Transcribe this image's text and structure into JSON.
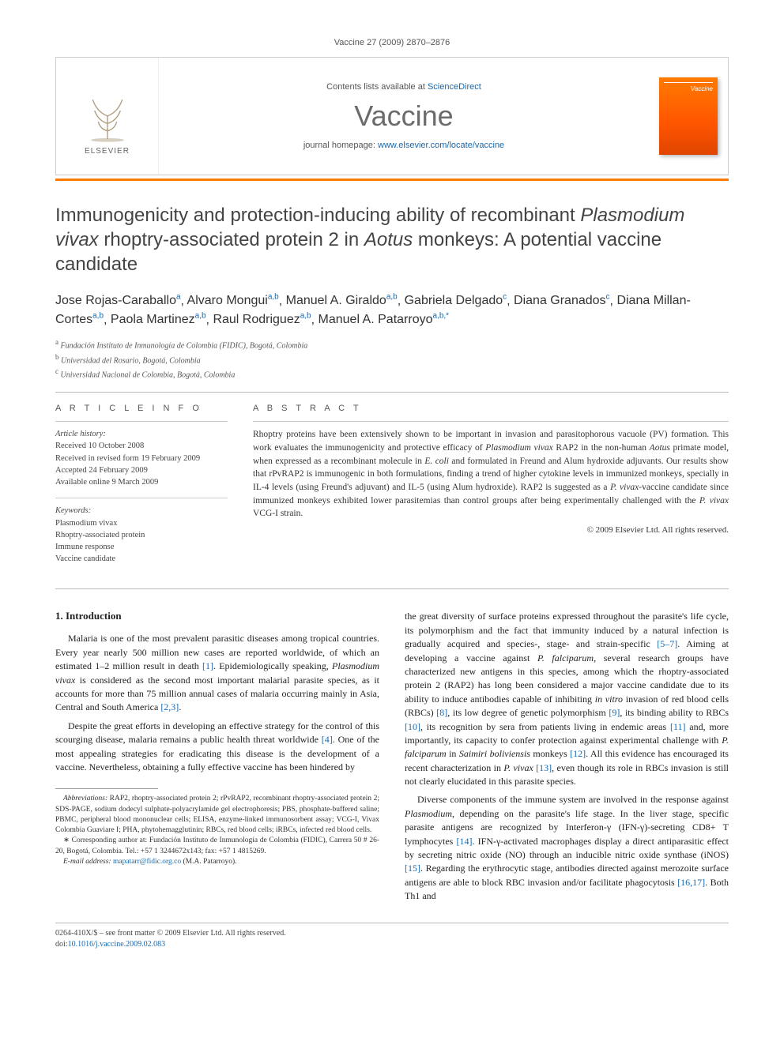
{
  "running_head": "Vaccine 27 (2009) 2870–2876",
  "masthead": {
    "contents_prefix": "Contents lists available at ",
    "contents_link": "ScienceDirect",
    "journal": "Vaccine",
    "homepage_prefix": "journal homepage: ",
    "homepage_url": "www.elsevier.com/locate/vaccine",
    "publisher": "ELSEVIER",
    "cover_label": "Vaccine"
  },
  "title_parts": {
    "p1": "Immunogenicity and protection-inducing ability of recombinant ",
    "p2_it": "Plasmodium vivax",
    "p3": " rhoptry-associated protein 2 in ",
    "p4_it": "Aotus",
    "p5": " monkeys: A potential vaccine candidate"
  },
  "authors": [
    {
      "name": "Jose Rojas-Caraballo",
      "aff": "a"
    },
    {
      "name": "Alvaro Mongui",
      "aff": "a,b"
    },
    {
      "name": "Manuel A. Giraldo",
      "aff": "a,b"
    },
    {
      "name": "Gabriela Delgado",
      "aff": "c"
    },
    {
      "name": "Diana Granados",
      "aff": "c"
    },
    {
      "name": "Diana Millan-Cortes",
      "aff": "a,b"
    },
    {
      "name": "Paola Martinez",
      "aff": "a,b"
    },
    {
      "name": "Raul Rodriguez",
      "aff": "a,b"
    },
    {
      "name": "Manuel A. Patarroyo",
      "aff": "a,b,",
      "corr": "*"
    }
  ],
  "affiliations": {
    "a": "Fundación Instituto de Inmunología de Colombia (FIDIC), Bogotá, Colombia",
    "b": "Universidad del Rosario, Bogotá, Colombia",
    "c": "Universidad Nacional de Colombia, Bogotá, Colombia"
  },
  "info": {
    "label": "A R T I C L E   I N F O",
    "history_hdr": "Article history:",
    "received": "Received 10 October 2008",
    "revised": "Received in revised form 19 February 2009",
    "accepted": "Accepted 24 February 2009",
    "online": "Available online 9 March 2009",
    "keywords_hdr": "Keywords:",
    "kw1": "Plasmodium vivax",
    "kw2": "Rhoptry-associated protein",
    "kw3": "Immune response",
    "kw4": "Vaccine candidate"
  },
  "abstract": {
    "label": "A B S T R A C T",
    "t1": "Rhoptry proteins have been extensively shown to be important in invasion and parasitophorous vacuole (PV) formation. This work evaluates the immunogenicity and protective efficacy of ",
    "t2_it": "Plasmodium vivax",
    "t3": " RAP2 in the non-human ",
    "t4_it": "Aotus",
    "t5": " primate model, when expressed as a recombinant molecule in ",
    "t6_it": "E. coli",
    "t7": " and formulated in Freund and Alum hydroxide adjuvants. Our results show that rPvRAP2 is immunogenic in both formulations, finding a trend of higher cytokine levels in immunized monkeys, specially in IL-4 levels (using Freund's adjuvant) and IL-5 (using Alum hydroxide). RAP2 is suggested as a ",
    "t8_it": "P. vivax",
    "t9": "-vaccine candidate since immunized monkeys exhibited lower parasitemias than control groups after being experimentally challenged with the ",
    "t10_it": "P. vivax",
    "t11": " VCG-I strain.",
    "copyright": "© 2009 Elsevier Ltd. All rights reserved."
  },
  "section1_heading": "1.  Introduction",
  "col1": {
    "p1a": "Malaria is one of the most prevalent parasitic diseases among tropical countries. Every year nearly 500 million new cases are reported worldwide, of which an estimated 1–2 million result in death ",
    "p1r1": "[1]",
    "p1b": ". Epidemiologically speaking, ",
    "p1c_it": "Plasmodium vivax",
    "p1d": " is considered as the second most important malarial parasite species, as it accounts for more than 75 million annual cases of malaria occurring mainly in Asia, Central and South America ",
    "p1r2": "[2,3]",
    "p1e": ".",
    "p2a": "Despite the great efforts in developing an effective strategy for the control of this scourging disease, malaria remains a public health threat worldwide ",
    "p2r1": "[4]",
    "p2b": ". One of the most appealing strategies for eradicating this disease is the development of a vaccine. Nevertheless, obtaining a fully effective vaccine has been hindered by"
  },
  "abbr": {
    "hdr": "Abbreviations:",
    "text": " RAP2, rhoptry-associated protein 2; rPvRAP2, recombinant rhoptry-associated protein 2; SDS-PAGE, sodium dodecyl sulphate-polyacrylamide gel electrophoresis; PBS, phosphate-buffered saline; PBMC, peripheral blood mononuclear cells; ELISA, enzyme-linked immunosorbent assay; VCG-I, Vivax Colombia Guaviare I; PHA, phytohemagglutinin; RBCs, red blood cells; iRBCs, infected red blood cells."
  },
  "corr": {
    "star": "∗",
    "text": " Corresponding author at: Fundación Instituto de Inmunología de Colombia (FIDIC), Carrera 50 # 26-20, Bogotá, Colombia. Tel.: +57 1 3244672x143; fax: +57 1 4815269.",
    "email_label": "E-mail address:",
    "email": "mapatarr@fidic.org.co",
    "email_suffix": " (M.A. Patarroyo)."
  },
  "col2": {
    "p1a": "the great diversity of surface proteins expressed throughout the parasite's life cycle, its polymorphism and the fact that immunity induced by a natural infection is gradually acquired and species-, stage- and strain-specific ",
    "p1r1": "[5–7]",
    "p1b": ". Aiming at developing a vaccine against ",
    "p1c_it": "P. falciparum",
    "p1d": ", several research groups have characterized new antigens in this species, among which the rhoptry-associated protein 2 (RAP2) has long been considered a major vaccine candidate due to its ability to induce antibodies capable of inhibiting ",
    "p1e_it": "in vitro",
    "p1f": " invasion of red blood cells (RBCs) ",
    "p1r2": "[8]",
    "p1g": ", its low degree of genetic polymorphism ",
    "p1r3": "[9]",
    "p1h": ", its binding ability to RBCs ",
    "p1r4": "[10]",
    "p1i": ", its recognition by sera from patients living in endemic areas ",
    "p1r5": "[11]",
    "p1j": " and, more importantly, its capacity to confer protection against experimental challenge with ",
    "p1k_it": "P. falciparum",
    "p1l": " in ",
    "p1m_it": "Saimiri boliviensis",
    "p1n": " monkeys ",
    "p1r6": "[12]",
    "p1o": ". All this evidence has encouraged its recent characterization in ",
    "p1p_it": "P. vivax",
    "p1q": " ",
    "p1r7": "[13]",
    "p1r": ", even though its role in RBCs invasion is still not clearly elucidated in this parasite species.",
    "p2a": "Diverse components of the immune system are involved in the response against ",
    "p2b_it": "Plasmodium",
    "p2c": ", depending on the parasite's life stage. In the liver stage, specific parasite antigens are recognized by Interferon-γ (IFN-γ)-secreting CD8+ T lymphocytes ",
    "p2r1": "[14]",
    "p2d": ". IFN-γ-activated macrophages display a direct antiparasitic effect by secreting nitric oxide (NO) through an inducible nitric oxide synthase (iNOS) ",
    "p2r2": "[15]",
    "p2e": ". Regarding the erythrocytic stage, antibodies directed against merozoite surface antigens are able to block RBC invasion and/or facilitate phagocytosis ",
    "p2r3": "[16,17]",
    "p2f": ". Both Th1 and"
  },
  "bottom": {
    "line1": "0264-410X/$ – see front matter © 2009 Elsevier Ltd. All rights reserved.",
    "doi_label": "doi:",
    "doi": "10.1016/j.vaccine.2009.02.083"
  },
  "colors": {
    "link": "#1669b0",
    "accent": "#ff7a00",
    "text": "#222222",
    "muted": "#555555",
    "rule": "#bbbbbb"
  }
}
